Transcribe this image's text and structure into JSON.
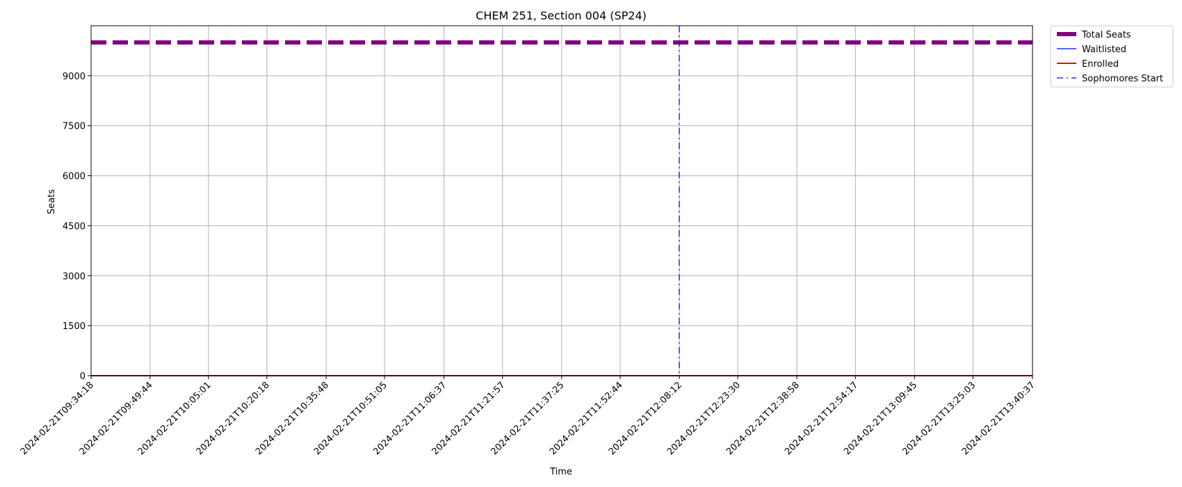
{
  "chart_data": {
    "type": "line",
    "title": "CHEM 251, Section 004 (SP24)",
    "xlabel": "Time",
    "ylabel": "Seats",
    "ylim": [
      0,
      10500
    ],
    "yticks": [
      0,
      1500,
      3000,
      4500,
      6000,
      7500,
      9000
    ],
    "grid": true,
    "legend_position": "outside-top-right",
    "x_ticks": [
      "2024-02-21T09:34:18",
      "2024-02-21T09:49:44",
      "2024-02-21T10:05:01",
      "2024-02-21T10:20:18",
      "2024-02-21T10:35:48",
      "2024-02-21T10:51:05",
      "2024-02-21T11:06:37",
      "2024-02-21T11:21:57",
      "2024-02-21T11:37:25",
      "2024-02-21T11:52:44",
      "2024-02-21T12:08:12",
      "2024-02-21T12:23:30",
      "2024-02-21T12:38:58",
      "2024-02-21T12:54:17",
      "2024-02-21T13:09:45",
      "2024-02-21T13:25:03",
      "2024-02-21T13:40:37"
    ],
    "series": [
      {
        "name": "Total Seats",
        "color": "#800080",
        "style": "dashed-thick",
        "x": [
          "2024-02-21T09:34:18",
          "2024-02-21T13:40:37"
        ],
        "values": [
          10000,
          10000
        ]
      },
      {
        "name": "Waitlisted",
        "color": "#0000ff",
        "style": "solid-thin",
        "x": [
          "2024-02-21T09:34:18",
          "2024-02-21T13:40:37"
        ],
        "values": [
          0,
          0
        ]
      },
      {
        "name": "Enrolled",
        "color": "#ff0000",
        "style": "solid",
        "x": [
          "2024-02-21T09:34:18",
          "2024-02-21T13:40:37"
        ],
        "values": [
          0,
          0
        ]
      }
    ],
    "annotations": [
      {
        "name": "Sophomores Start",
        "type": "vline",
        "x": "2024-02-21T12:08:12",
        "color": "#0000ff",
        "style": "dashdot"
      }
    ]
  }
}
